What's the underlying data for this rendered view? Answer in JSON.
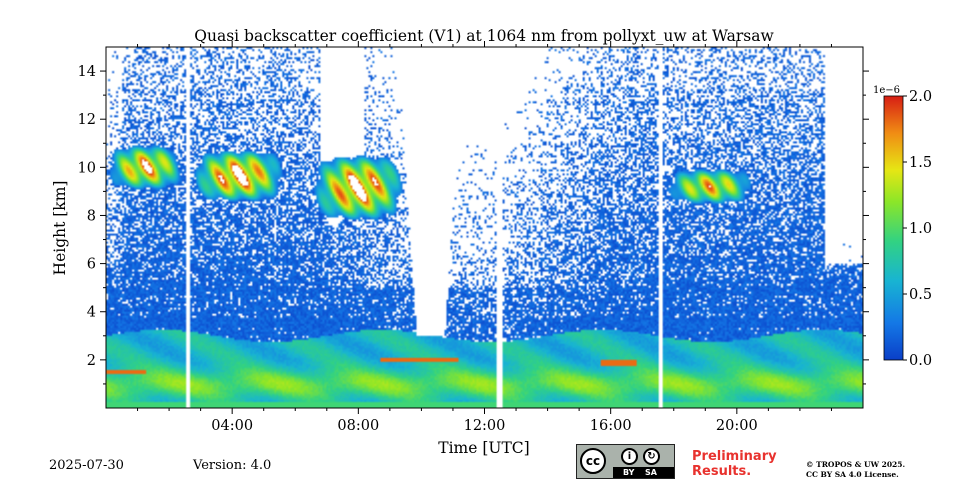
{
  "chart_data": {
    "type": "heatmap",
    "title": "Quasi backscatter coefficient (V1) at 1064 nm from pollyxt_uw at Warsaw",
    "xlabel": "Time [UTC]",
    "ylabel": "Height [km]",
    "xlim_hours": [
      0,
      24
    ],
    "ylim_km": [
      0,
      15
    ],
    "xticks": [
      {
        "value": 4,
        "label": "04:00"
      },
      {
        "value": 8,
        "label": "08:00"
      },
      {
        "value": 12,
        "label": "12:00"
      },
      {
        "value": 16,
        "label": "16:00"
      },
      {
        "value": 20,
        "label": "20:00"
      }
    ],
    "yticks": [
      {
        "value": 2,
        "label": "2"
      },
      {
        "value": 4,
        "label": "4"
      },
      {
        "value": 6,
        "label": "6"
      },
      {
        "value": 8,
        "label": "8"
      },
      {
        "value": 10,
        "label": "10"
      },
      {
        "value": 12,
        "label": "12"
      },
      {
        "value": 14,
        "label": "14"
      }
    ],
    "colorbar": {
      "range": [
        0.0,
        2.0
      ],
      "scale_label": "1e−6",
      "ticks": [
        {
          "value": 0.0,
          "label": "0.0"
        },
        {
          "value": 0.5,
          "label": "0.5"
        },
        {
          "value": 1.0,
          "label": "1.0"
        },
        {
          "value": 1.5,
          "label": "1.5"
        },
        {
          "value": 2.0,
          "label": "2.0"
        }
      ],
      "colormap": [
        "#0a3fc8",
        "#1478e6",
        "#18b4d2",
        "#32d282",
        "#8ce628",
        "#e6e614",
        "#f08c14",
        "#d71e14"
      ]
    },
    "features": {
      "boundary_layer": {
        "height_km": [
          0.3,
          3.0
        ],
        "value": 0.55
      },
      "noisy_region_km": [
        3.0,
        15.0
      ],
      "data_gaps_hours": [
        2.58,
        12.48,
        17.6
      ],
      "cirrus_layers": [
        {
          "t_start_h": 0.0,
          "t_end_h": 2.5,
          "h_km": [
            9.0,
            11.0
          ],
          "peak": 1.8
        },
        {
          "t_start_h": 2.7,
          "t_end_h": 5.7,
          "h_km": [
            8.5,
            10.8
          ],
          "peak": 2.0
        },
        {
          "t_start_h": 6.5,
          "t_end_h": 9.5,
          "h_km": [
            7.7,
            10.6
          ],
          "peak": 2.0
        },
        {
          "t_start_h": 17.7,
          "t_end_h": 20.6,
          "h_km": [
            8.4,
            10.0
          ],
          "peak": 1.6
        }
      ],
      "low_cloud_saturation": [
        {
          "t_start_h": 8.7,
          "t_end_h": 11.2,
          "h_km": [
            1.2,
            2.8
          ]
        },
        {
          "t_start_h": 0.0,
          "t_end_h": 1.3,
          "h_km": [
            1.4,
            1.6
          ]
        },
        {
          "t_start_h": 15.7,
          "t_end_h": 16.8,
          "h_km": [
            1.8,
            2.0
          ]
        }
      ]
    }
  },
  "footer": {
    "date": "2025-07-30",
    "version": "Version: 4.0",
    "license_badge": {
      "cc": "cc",
      "by": "BY",
      "sa": "SA"
    },
    "preliminary": [
      "Preliminary",
      "Results."
    ],
    "copyright": [
      "© TROPOS & UW 2025.",
      "CC BY SA 4.0 License."
    ]
  }
}
